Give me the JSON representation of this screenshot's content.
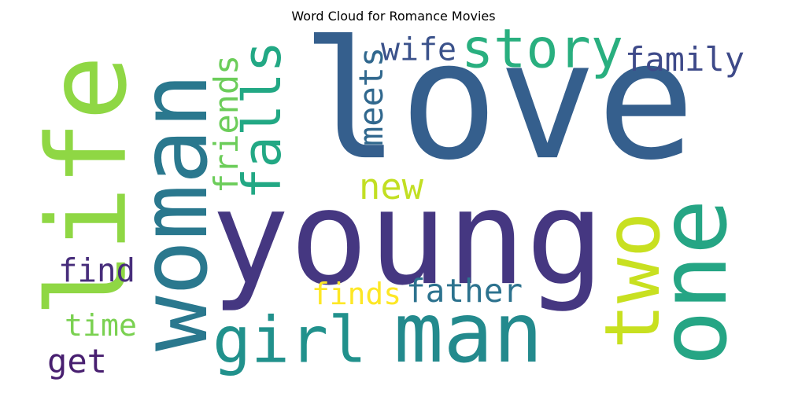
{
  "chart_data": {
    "type": "wordcloud",
    "title": "Word Cloud for Romance Movies",
    "words": [
      {
        "text": "love",
        "color": "#355f8d"
      },
      {
        "text": "young",
        "color": "#453781"
      },
      {
        "text": "man",
        "color": "#238a8d"
      },
      {
        "text": "woman",
        "color": "#2a788e"
      },
      {
        "text": "life",
        "color": "#8fd744"
      },
      {
        "text": "one",
        "color": "#25a584"
      },
      {
        "text": "two",
        "color": "#c8e020"
      },
      {
        "text": "story",
        "color": "#29af7f"
      },
      {
        "text": "falls",
        "color": "#22a884"
      },
      {
        "text": "girl",
        "color": "#21918c"
      },
      {
        "text": "family",
        "color": "#3e4a89"
      },
      {
        "text": "wife",
        "color": "#3b528b"
      },
      {
        "text": "meets",
        "color": "#31688e"
      },
      {
        "text": "friends",
        "color": "#6ccd5a"
      },
      {
        "text": "new",
        "color": "#c2df23"
      },
      {
        "text": "father",
        "color": "#2c728e"
      },
      {
        "text": "finds",
        "color": "#fde725"
      },
      {
        "text": "find",
        "color": "#472d7b"
      },
      {
        "text": "time",
        "color": "#7ad151"
      },
      {
        "text": "get",
        "color": "#481f70"
      }
    ]
  }
}
